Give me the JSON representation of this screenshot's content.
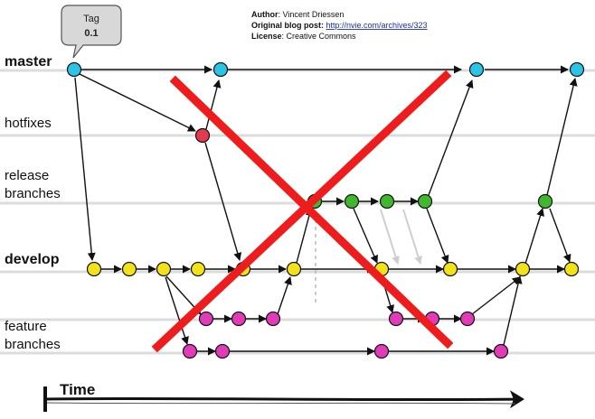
{
  "credits": {
    "author_label": "Author",
    "author_value": ": Vincent Driessen",
    "blog_label": "Original blog post",
    "blog_sep": ": ",
    "blog_url": "http://nvie.com/archives/323",
    "license_label": "License",
    "license_value": ": Creative Commons"
  },
  "tag": {
    "line1": "Tag",
    "line2": "0.1"
  },
  "lanes": {
    "master": "master",
    "hotfixes": "hotfixes",
    "release_1": "release",
    "release_2": "branches",
    "develop": "develop",
    "feature_1": "feature",
    "feature_2": "branches"
  },
  "time_label": "Time",
  "colors": {
    "master": "#2cc4e4",
    "hotfix": "#e23a4e",
    "release": "#3fb82e",
    "develop": "#f2e21a",
    "feature": "#e03cb8",
    "cross": "#ee1c1c",
    "lane_line": "#dcdcdc"
  }
}
